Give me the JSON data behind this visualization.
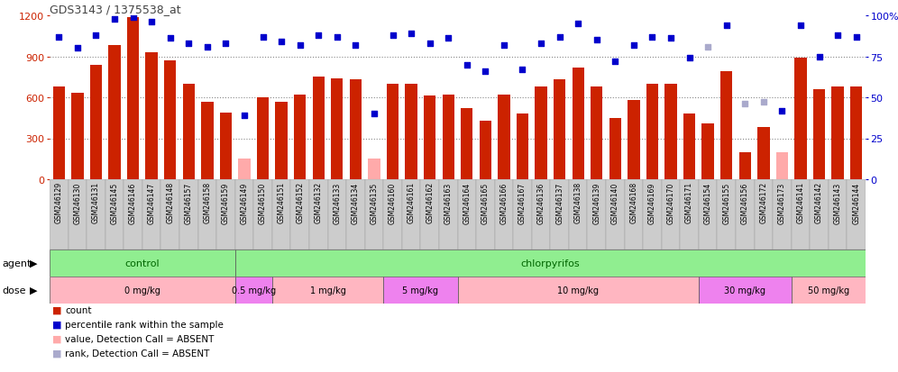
{
  "title": "GDS3143 / 1375538_at",
  "samples": [
    "GSM246129",
    "GSM246130",
    "GSM246131",
    "GSM246145",
    "GSM246146",
    "GSM246147",
    "GSM246148",
    "GSM246157",
    "GSM246158",
    "GSM246159",
    "GSM246149",
    "GSM246150",
    "GSM246151",
    "GSM246152",
    "GSM246132",
    "GSM246133",
    "GSM246134",
    "GSM246135",
    "GSM246160",
    "GSM246161",
    "GSM246162",
    "GSM246163",
    "GSM246164",
    "GSM246165",
    "GSM246166",
    "GSM246167",
    "GSM246136",
    "GSM246137",
    "GSM246138",
    "GSM246139",
    "GSM246140",
    "GSM246168",
    "GSM246169",
    "GSM246170",
    "GSM246171",
    "GSM246154",
    "GSM246155",
    "GSM246156",
    "GSM246172",
    "GSM246173",
    "GSM246141",
    "GSM246142",
    "GSM246143",
    "GSM246144"
  ],
  "count_values": [
    680,
    630,
    840,
    980,
    1190,
    930,
    870,
    700,
    570,
    490,
    150,
    600,
    570,
    620,
    750,
    740,
    730,
    150,
    700,
    700,
    610,
    620,
    520,
    430,
    620,
    480,
    680,
    730,
    820,
    680,
    450,
    580,
    700,
    700,
    480,
    410,
    790,
    200,
    380,
    200,
    890,
    660,
    680,
    680
  ],
  "absent_count": [
    false,
    false,
    false,
    false,
    false,
    false,
    false,
    false,
    false,
    false,
    true,
    false,
    false,
    false,
    false,
    false,
    false,
    true,
    false,
    false,
    false,
    false,
    false,
    false,
    false,
    false,
    false,
    false,
    false,
    false,
    false,
    false,
    false,
    false,
    false,
    false,
    false,
    false,
    false,
    true,
    false,
    false,
    false,
    false
  ],
  "rank_values": [
    870,
    800,
    880,
    980,
    990,
    960,
    860,
    830,
    810,
    830,
    390,
    870,
    840,
    820,
    880,
    870,
    820,
    400,
    880,
    890,
    830,
    860,
    700,
    660,
    820,
    670,
    830,
    870,
    950,
    850,
    720,
    820,
    870,
    860,
    740,
    810,
    940,
    460,
    470,
    420,
    940,
    750,
    880,
    870
  ],
  "absent_rank": [
    false,
    false,
    false,
    false,
    false,
    false,
    false,
    false,
    false,
    false,
    false,
    false,
    false,
    false,
    false,
    false,
    false,
    false,
    false,
    false,
    false,
    false,
    false,
    false,
    false,
    false,
    false,
    false,
    false,
    false,
    false,
    false,
    false,
    false,
    false,
    true,
    false,
    true,
    true,
    false,
    false,
    false,
    false,
    false
  ],
  "agent_groups": [
    {
      "label": "control",
      "start": 0,
      "end": 10,
      "color": "#90ee90"
    },
    {
      "label": "chlorpyrifos",
      "start": 10,
      "end": 44,
      "color": "#90ee90"
    }
  ],
  "dose_groups": [
    {
      "label": "0 mg/kg",
      "start": 0,
      "end": 10,
      "color": "#ffb6c1"
    },
    {
      "label": "0.5 mg/kg",
      "start": 10,
      "end": 12,
      "color": "#ee82ee"
    },
    {
      "label": "1 mg/kg",
      "start": 12,
      "end": 18,
      "color": "#ffb6c1"
    },
    {
      "label": "5 mg/kg",
      "start": 18,
      "end": 22,
      "color": "#ee82ee"
    },
    {
      "label": "10 mg/kg",
      "start": 22,
      "end": 35,
      "color": "#ffb6c1"
    },
    {
      "label": "30 mg/kg",
      "start": 35,
      "end": 40,
      "color": "#ee82ee"
    },
    {
      "label": "50 mg/kg",
      "start": 40,
      "end": 44,
      "color": "#ffb6c1"
    }
  ],
  "bar_color": "#cc2200",
  "absent_bar_color": "#ffaaaa",
  "rank_color": "#0000cc",
  "absent_rank_color": "#aaaacc",
  "bg_color": "#ffffff",
  "grid_color": "#888888",
  "title_color": "#444444",
  "left_tick_color": "#cc2200",
  "right_tick_color": "#0000cc",
  "legend_entries": [
    {
      "color": "#cc2200",
      "label": "count"
    },
    {
      "color": "#0000cc",
      "label": "percentile rank within the sample"
    },
    {
      "color": "#ffaaaa",
      "label": "value, Detection Call = ABSENT"
    },
    {
      "color": "#aaaacc",
      "label": "rank, Detection Call = ABSENT"
    }
  ]
}
